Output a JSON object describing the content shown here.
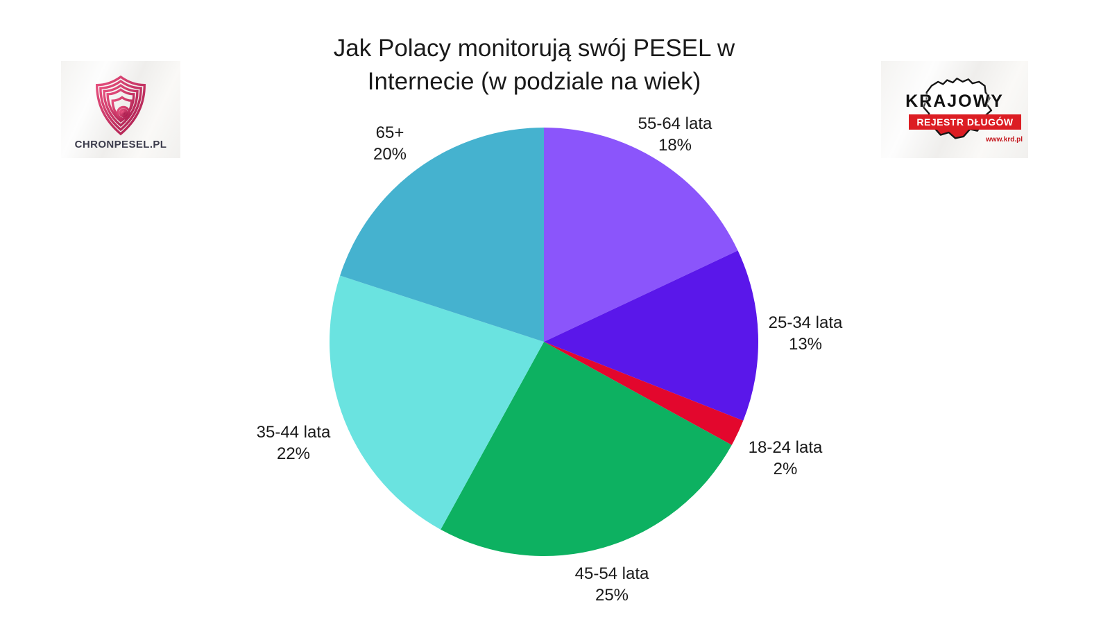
{
  "title": {
    "line1": "Jak Polacy monitorują swój PESEL w",
    "line2": "Internecie (w podziale na wiek)"
  },
  "logos": {
    "chronpesel": {
      "text": "CHRONPESEL.PL",
      "icon": "fingerprint-shield",
      "accent": "#c2255e"
    },
    "krd": {
      "line1": "KRAJOWY",
      "line2": "REJESTR DŁUGÓW",
      "url": "www.krd.pl",
      "red": "#dc1d23"
    }
  },
  "chart_data": {
    "type": "pie",
    "title": "Jak Polacy monitorują swój PESEL w Internecie (w podziale na wiek)",
    "start_angle_deg": 0,
    "direction": "clockwise",
    "legend": "none",
    "labels_outside": true,
    "slices": [
      {
        "label": "55-64 lata",
        "value": 18,
        "pct_label": "18%",
        "color": "#8B55FB"
      },
      {
        "label": "25-34 lata",
        "value": 13,
        "pct_label": "13%",
        "color": "#5A17EA"
      },
      {
        "label": "18-24 lata",
        "value": 2,
        "pct_label": "2%",
        "color": "#E3072D"
      },
      {
        "label": "45-54 lata",
        "value": 25,
        "pct_label": "25%",
        "color": "#0DB161"
      },
      {
        "label": "35-44 lata",
        "value": 22,
        "pct_label": "22%",
        "color": "#6AE3E0"
      },
      {
        "label": "65+",
        "value": 20,
        "pct_label": "20%",
        "color": "#45B2CF"
      }
    ]
  }
}
